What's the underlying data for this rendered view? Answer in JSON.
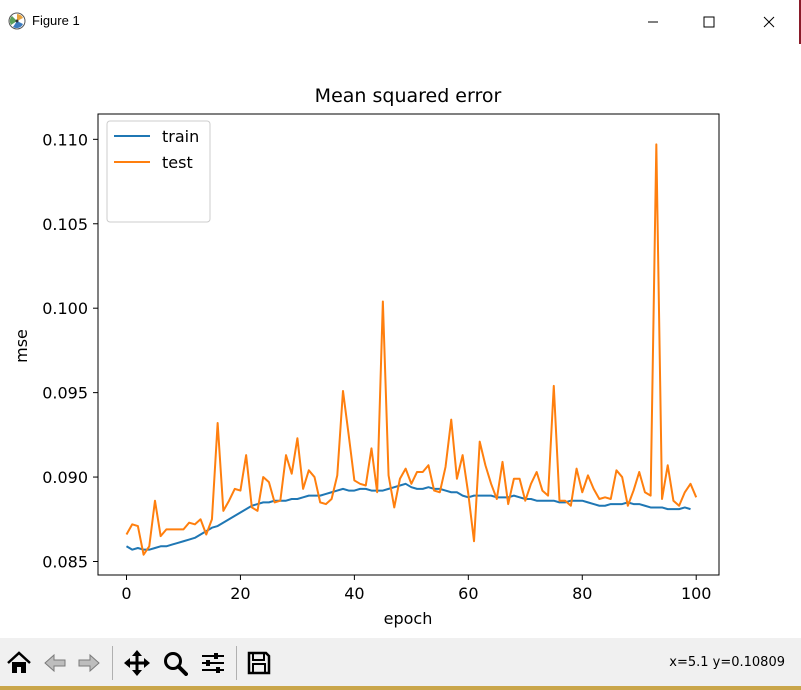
{
  "window": {
    "title": "Figure 1",
    "icons": [
      "app-icon",
      "minimize-icon",
      "maximize-icon",
      "close-icon"
    ]
  },
  "status": {
    "coords": "x=5.1 y=0.10809"
  },
  "toolbar": {
    "buttons": [
      "home-icon",
      "back-icon",
      "forward-icon",
      "pan-icon",
      "zoom-icon",
      "configure-subplots-icon",
      "save-icon"
    ]
  },
  "colors": {
    "train": "#1f77b4",
    "test": "#ff7f0e"
  },
  "chart_data": {
    "type": "line",
    "title": "Mean squared error",
    "xlabel": "epoch",
    "ylabel": "mse",
    "xlim": [
      -5,
      104
    ],
    "ylim": [
      0.0842,
      0.1115
    ],
    "xticks": [
      0,
      20,
      40,
      60,
      80,
      100
    ],
    "xtick_labels": [
      "0",
      "20",
      "40",
      "60",
      "80",
      "100"
    ],
    "yticks": [
      0.085,
      0.09,
      0.095,
      0.1,
      0.105,
      0.11
    ],
    "ytick_labels": [
      "0.085",
      "0.090",
      "0.095",
      "0.100",
      "0.105",
      "0.110"
    ],
    "legend_position": "top-left",
    "series": [
      {
        "name": "train",
        "color": "#1f77b4",
        "values": [
          0.0859,
          0.0857,
          0.0858,
          0.0857,
          0.0857,
          0.0858,
          0.0859,
          0.0859,
          0.086,
          0.0861,
          0.0862,
          0.0863,
          0.0864,
          0.0866,
          0.0868,
          0.087,
          0.0871,
          0.0873,
          0.0875,
          0.0877,
          0.0879,
          0.0881,
          0.0883,
          0.0884,
          0.0885,
          0.0885,
          0.0886,
          0.0886,
          0.0886,
          0.0887,
          0.0887,
          0.0888,
          0.0889,
          0.0889,
          0.0889,
          0.089,
          0.0891,
          0.0892,
          0.0893,
          0.0892,
          0.0892,
          0.0893,
          0.0893,
          0.0892,
          0.0892,
          0.0892,
          0.0893,
          0.0894,
          0.0895,
          0.0896,
          0.0894,
          0.0893,
          0.0893,
          0.0894,
          0.0893,
          0.0893,
          0.0892,
          0.0891,
          0.0891,
          0.0889,
          0.0888,
          0.0889,
          0.0889,
          0.0889,
          0.0889,
          0.0888,
          0.0888,
          0.0888,
          0.0889,
          0.0888,
          0.0887,
          0.0887,
          0.0886,
          0.0886,
          0.0886,
          0.0886,
          0.0885,
          0.0885,
          0.0886,
          0.0886,
          0.0886,
          0.0885,
          0.0884,
          0.0883,
          0.0883,
          0.0884,
          0.0884,
          0.0884,
          0.0885,
          0.0884,
          0.0884,
          0.0883,
          0.0882,
          0.0882,
          0.0882,
          0.0881,
          0.0881,
          0.0881,
          0.0882,
          0.0881
        ]
      },
      {
        "name": "test",
        "color": "#ff7f0e",
        "values": [
          0.0866,
          0.0872,
          0.0871,
          0.0854,
          0.0859,
          0.0886,
          0.0865,
          0.0869,
          0.0869,
          0.0869,
          0.0869,
          0.0873,
          0.0872,
          0.0875,
          0.0866,
          0.0875,
          0.0932,
          0.088,
          0.0886,
          0.0893,
          0.0892,
          0.0913,
          0.0882,
          0.088,
          0.09,
          0.0897,
          0.0885,
          0.0886,
          0.0913,
          0.0902,
          0.0923,
          0.0893,
          0.0904,
          0.09,
          0.0885,
          0.0884,
          0.0887,
          0.0901,
          0.0951,
          0.0925,
          0.0898,
          0.0896,
          0.0895,
          0.0917,
          0.0891,
          0.1004,
          0.0901,
          0.0882,
          0.0899,
          0.0905,
          0.0896,
          0.0903,
          0.0903,
          0.0907,
          0.0892,
          0.0891,
          0.0906,
          0.0934,
          0.0899,
          0.0913,
          0.089,
          0.0862,
          0.0921,
          0.0907,
          0.0896,
          0.0887,
          0.0909,
          0.0884,
          0.0899,
          0.0899,
          0.0886,
          0.0896,
          0.0903,
          0.0892,
          0.0889,
          0.0954,
          0.0886,
          0.0886,
          0.0883,
          0.0905,
          0.0891,
          0.0901,
          0.0893,
          0.0887,
          0.0888,
          0.0887,
          0.0904,
          0.09,
          0.0883,
          0.0892,
          0.0903,
          0.0891,
          0.0889,
          0.1097,
          0.0887,
          0.0907,
          0.0886,
          0.0883,
          0.0891,
          0.0896,
          0.0888
        ]
      }
    ]
  }
}
